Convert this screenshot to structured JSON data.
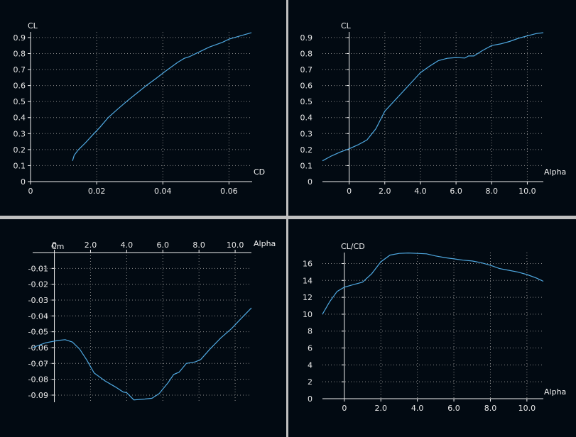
{
  "colors": {
    "background": "#020a12",
    "curve": "#4fa8e0",
    "divider": "#c0c0c0",
    "text": "#e8e8e8"
  },
  "chart_data": [
    {
      "id": "cl-cd",
      "type": "line",
      "title": "",
      "xlabel": "CD",
      "ylabel": "CL",
      "xlim": [
        0,
        0.067
      ],
      "ylim": [
        0,
        0.935
      ],
      "xticks": [
        0,
        0.02,
        0.04,
        0.06
      ],
      "xtick_labels": [
        "0",
        "0.02",
        "0.04",
        "0.06"
      ],
      "yticks": [
        0,
        0.1,
        0.2,
        0.3,
        0.4,
        0.5,
        0.6,
        0.7,
        0.8,
        0.9
      ],
      "ytick_labels": [
        "0",
        "0.1",
        "0.2",
        "0.3",
        "0.4",
        "0.5",
        "0.6",
        "0.7",
        "0.8",
        "0.9"
      ],
      "grid": true,
      "series": [
        {
          "x": [
            0.0127,
            0.0132,
            0.0145,
            0.0165,
            0.0185,
            0.021,
            0.0235,
            0.0262,
            0.029,
            0.032,
            0.035,
            0.038,
            0.0405,
            0.0425,
            0.0445,
            0.0465,
            0.048,
            0.0495,
            0.051,
            0.0525,
            0.054,
            0.056,
            0.058,
            0.06,
            0.0625,
            0.065,
            0.0668
          ],
          "y": [
            0.13,
            0.165,
            0.2,
            0.24,
            0.285,
            0.34,
            0.4,
            0.45,
            0.5,
            0.55,
            0.6,
            0.645,
            0.685,
            0.715,
            0.745,
            0.77,
            0.78,
            0.795,
            0.81,
            0.825,
            0.84,
            0.855,
            0.87,
            0.89,
            0.905,
            0.92,
            0.93
          ]
        }
      ]
    },
    {
      "id": "cl-alpha",
      "type": "line",
      "title": "",
      "xlabel": "Alpha",
      "ylabel": "CL",
      "xlim": [
        -1.5,
        10.9
      ],
      "ylim": [
        0,
        0.935
      ],
      "xticks": [
        0,
        2,
        4,
        6,
        8,
        10
      ],
      "xtick_labels": [
        "0",
        "2.0",
        "4.0",
        "6.0",
        "8.0",
        "10.0"
      ],
      "yticks": [
        0,
        0.1,
        0.2,
        0.3,
        0.4,
        0.5,
        0.6,
        0.7,
        0.8,
        0.9
      ],
      "ytick_labels": [
        "0",
        "0.1",
        "0.2",
        "0.3",
        "0.4",
        "0.5",
        "0.6",
        "0.7",
        "0.8",
        "0.9"
      ],
      "grid": true,
      "series": [
        {
          "x": [
            -1.5,
            -1,
            -0.5,
            0,
            0.5,
            1,
            1.5,
            2,
            2.5,
            3,
            3.5,
            4,
            4.5,
            5,
            5.5,
            6,
            6.5,
            6.7,
            7,
            7.5,
            8,
            8.5,
            9,
            9.5,
            10,
            10.5,
            10.9
          ],
          "y": [
            0.13,
            0.16,
            0.185,
            0.205,
            0.23,
            0.26,
            0.33,
            0.44,
            0.5,
            0.56,
            0.62,
            0.68,
            0.72,
            0.755,
            0.77,
            0.775,
            0.772,
            0.785,
            0.785,
            0.82,
            0.85,
            0.86,
            0.875,
            0.895,
            0.91,
            0.925,
            0.93
          ]
        }
      ]
    },
    {
      "id": "cm-alpha",
      "type": "line",
      "title": "",
      "xlabel": "Alpha",
      "ylabel": "Cm",
      "xlim": [
        -1.2,
        10.9
      ],
      "ylim": [
        -0.0945,
        0
      ],
      "x_axis_position": "top",
      "xticks": [
        0,
        2,
        4,
        6,
        8,
        10
      ],
      "xtick_labels": [
        "0",
        "2.0",
        "4.0",
        "6.0",
        "8.0",
        "10.0"
      ],
      "yticks": [
        -0.01,
        -0.02,
        -0.03,
        -0.04,
        -0.05,
        -0.06,
        -0.07,
        -0.08,
        -0.09
      ],
      "ytick_labels": [
        "-0.01",
        "-0.02",
        "-0.03",
        "-0.04",
        "-0.05",
        "-0.06",
        "-0.07",
        "-0.08",
        "-0.09"
      ],
      "grid": true,
      "series": [
        {
          "x": [
            -1.2,
            -0.5,
            0.2,
            0.6,
            1,
            1.4,
            1.8,
            2.2,
            2.8,
            3.4,
            3.8,
            4,
            4.4,
            5,
            5.4,
            5.8,
            6.3,
            6.6,
            6.9,
            7.3,
            7.8,
            8.1,
            8.6,
            9.2,
            9.8,
            10.3,
            10.9
          ],
          "y": [
            -0.06,
            -0.057,
            -0.0555,
            -0.055,
            -0.0565,
            -0.061,
            -0.068,
            -0.076,
            -0.081,
            -0.085,
            -0.088,
            -0.0885,
            -0.093,
            -0.0925,
            -0.092,
            -0.089,
            -0.082,
            -0.077,
            -0.0755,
            -0.07,
            -0.069,
            -0.0675,
            -0.061,
            -0.054,
            -0.048,
            -0.042,
            -0.035
          ]
        }
      ]
    },
    {
      "id": "clcd-alpha",
      "type": "line",
      "title": "",
      "xlabel": "Alpha",
      "ylabel": "CL/CD",
      "xlim": [
        -1.2,
        10.9
      ],
      "ylim": [
        0,
        17.3
      ],
      "xticks": [
        0,
        2,
        4,
        6,
        8,
        10
      ],
      "xtick_labels": [
        "0",
        "2.0",
        "4.0",
        "6.0",
        "8.0",
        "10.0"
      ],
      "yticks": [
        0,
        2,
        4,
        6,
        8,
        10,
        12,
        14,
        16
      ],
      "ytick_labels": [
        "0",
        "2",
        "4",
        "6",
        "8",
        "10",
        "12",
        "14",
        "16"
      ],
      "grid": true,
      "series": [
        {
          "x": [
            -1.2,
            -0.8,
            -0.4,
            0,
            0.5,
            1,
            1.5,
            2,
            2.5,
            3,
            3.5,
            4,
            4.5,
            5,
            5.5,
            6,
            6.5,
            7,
            7.5,
            8,
            8.5,
            9,
            9.5,
            10,
            10.5,
            10.9
          ],
          "y": [
            10,
            11.5,
            12.7,
            13.2,
            13.5,
            13.8,
            14.8,
            16.2,
            17,
            17.2,
            17.25,
            17.2,
            17.15,
            16.9,
            16.7,
            16.55,
            16.4,
            16.3,
            16.1,
            15.8,
            15.4,
            15.2,
            15,
            14.7,
            14.3,
            13.9
          ]
        }
      ]
    }
  ]
}
